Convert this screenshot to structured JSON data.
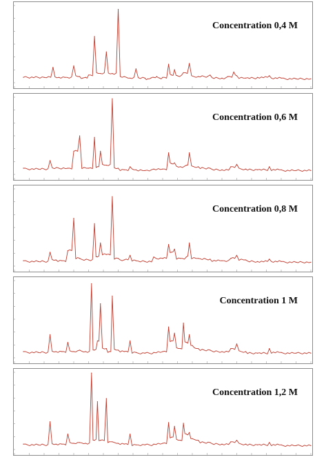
{
  "chart_data": [
    {
      "type": "line",
      "title": "Concentration 0,4 M",
      "color": "#c0392b",
      "ylim": [
        0,
        100
      ],
      "xlim": [
        0,
        100
      ],
      "grid": false,
      "x": [
        3,
        10,
        13,
        15,
        17,
        20,
        22,
        23,
        24,
        25,
        27,
        29,
        31,
        33,
        35,
        37,
        39,
        41,
        44,
        45,
        46,
        47,
        48,
        49,
        50,
        52,
        53,
        54,
        55,
        57,
        59,
        62,
        66,
        70,
        72,
        74,
        75,
        78,
        82,
        86,
        90,
        95,
        100
      ],
      "values": [
        7,
        7,
        20,
        7,
        7,
        22,
        8,
        6,
        7,
        10,
        60,
        12,
        40,
        12,
        95,
        8,
        6,
        18,
        6,
        5,
        6,
        7,
        8,
        6,
        7,
        24,
        10,
        17,
        9,
        13,
        25,
        8,
        10,
        6,
        8,
        14,
        9,
        6,
        7,
        9,
        6,
        5,
        5
      ]
    },
    {
      "type": "line",
      "title": "Concentration 0,6 M",
      "color": "#c0392b",
      "ylim": [
        0,
        100
      ],
      "xlim": [
        0,
        100
      ],
      "grid": false,
      "x": [
        3,
        8,
        12,
        15,
        18,
        20,
        22,
        25,
        27,
        28,
        29,
        31,
        33,
        35,
        37,
        39,
        41,
        44,
        47,
        50,
        52,
        53,
        54,
        56,
        58,
        59,
        62,
        66,
        70,
        73,
        75,
        78,
        82,
        86,
        90,
        95,
        100
      ],
      "values": [
        8,
        7,
        18,
        8,
        8,
        30,
        50,
        8,
        48,
        10,
        30,
        12,
        98,
        8,
        6,
        10,
        6,
        5,
        7,
        7,
        28,
        14,
        15,
        10,
        12,
        28,
        10,
        8,
        6,
        10,
        13,
        7,
        6,
        10,
        6,
        5,
        5
      ]
    },
    {
      "type": "line",
      "title": "Concentration 0,8 M",
      "color": "#c0392b",
      "ylim": [
        0,
        100
      ],
      "xlim": [
        0,
        100
      ],
      "grid": false,
      "x": [
        3,
        8,
        12,
        14,
        16,
        18,
        20,
        22,
        25,
        27,
        28,
        29,
        31,
        33,
        35,
        37,
        39,
        41,
        44,
        47,
        50,
        52,
        53,
        54,
        56,
        58,
        59,
        62,
        66,
        70,
        73,
        75,
        78,
        82,
        86,
        90,
        95,
        100
      ],
      "values": [
        7,
        6,
        18,
        8,
        7,
        20,
        62,
        10,
        8,
        55,
        12,
        30,
        15,
        90,
        10,
        8,
        14,
        7,
        6,
        12,
        10,
        28,
        18,
        22,
        10,
        12,
        30,
        10,
        9,
        7,
        10,
        14,
        8,
        6,
        9,
        6,
        5,
        5
      ]
    },
    {
      "type": "line",
      "title": "Concentration 1 M",
      "color": "#c0392b",
      "ylim": [
        0,
        100
      ],
      "xlim": [
        0,
        100
      ],
      "grid": false,
      "x": [
        3,
        8,
        12,
        14,
        16,
        18,
        20,
        22,
        24,
        26,
        27,
        28,
        29,
        31,
        32,
        33,
        35,
        37,
        39,
        41,
        44,
        47,
        50,
        52,
        53,
        54,
        56,
        57,
        58,
        59,
        60,
        62,
        66,
        70,
        73,
        75,
        78,
        82,
        86,
        90,
        95,
        100
      ],
      "values": [
        8,
        7,
        30,
        8,
        8,
        20,
        8,
        10,
        8,
        96,
        10,
        22,
        70,
        12,
        8,
        80,
        10,
        8,
        22,
        7,
        6,
        7,
        8,
        40,
        22,
        32,
        12,
        45,
        20,
        30,
        16,
        12,
        10,
        8,
        12,
        18,
        8,
        6,
        12,
        7,
        6,
        6
      ]
    },
    {
      "type": "line",
      "title": "Concentration 1,2 M",
      "color": "#c0392b",
      "ylim": [
        0,
        100
      ],
      "xlim": [
        0,
        100
      ],
      "grid": false,
      "x": [
        3,
        8,
        12,
        14,
        16,
        18,
        20,
        22,
        24,
        26,
        27,
        28,
        29,
        31,
        32,
        33,
        35,
        37,
        39,
        41,
        44,
        47,
        50,
        52,
        53,
        54,
        56,
        57,
        58,
        59,
        60,
        62,
        66,
        70,
        73,
        75,
        78,
        82,
        86,
        90,
        95,
        100
      ],
      "values": [
        7,
        6,
        36,
        7,
        7,
        20,
        8,
        9,
        8,
        99,
        12,
        62,
        12,
        66,
        10,
        10,
        8,
        7,
        20,
        6,
        6,
        7,
        8,
        35,
        16,
        30,
        12,
        34,
        20,
        22,
        14,
        12,
        9,
        7,
        10,
        12,
        7,
        6,
        9,
        6,
        5,
        5
      ]
    }
  ]
}
